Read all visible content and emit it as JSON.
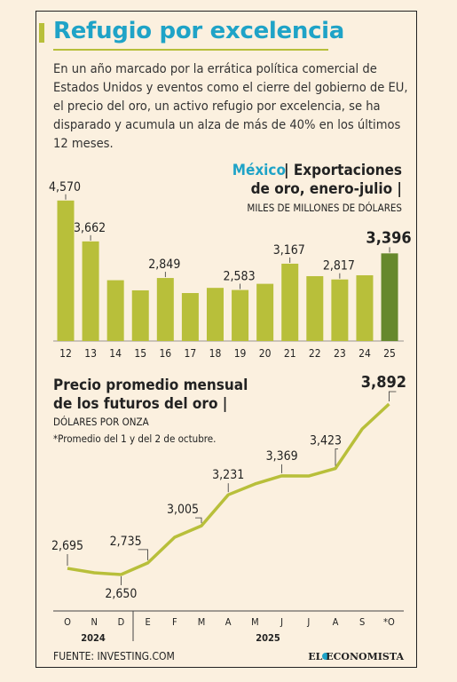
{
  "header": {
    "title": "Refugio por excelencia",
    "intro": "En un año marcado por la errática política comercial de Estados Unidos y eventos como el cierre del gobierno de EU, el precio del oro, un activo refugio por excelencia, se ha disparado y acumula un alza de más de 40% en los últimos 12 meses."
  },
  "chart_data": [
    {
      "type": "bar",
      "title_prefix": "México",
      "title": [
        "| Exportaciones",
        "de oro, enero-julio |"
      ],
      "subtitle": "MILES DE MILLONES DE DÓLARES",
      "categories": [
        "12",
        "13",
        "14",
        "15",
        "16",
        "17",
        "18",
        "19",
        "20",
        "21",
        "22",
        "23",
        "24",
        "25"
      ],
      "values": [
        4570,
        3662,
        2800,
        2575,
        2849,
        2515,
        2630,
        2583,
        2720,
        3167,
        2890,
        2817,
        2910,
        3396
      ],
      "value_labels": [
        "4,570",
        "3,662",
        null,
        null,
        "2,849",
        null,
        null,
        "2,583",
        null,
        "3,167",
        null,
        "2,817",
        null,
        "3,396"
      ],
      "color": "#b8bf3a",
      "highlight_color": "#66882c",
      "ylim": [
        1450,
        5000
      ]
    },
    {
      "type": "line",
      "title": [
        "Precio promedio mensual",
        "de los futuros del oro |"
      ],
      "subtitle": "DÓLARES POR ONZA",
      "note": "*Promedio del 1 y del 2 de octubre.",
      "categories": [
        "O",
        "N",
        "D",
        "E",
        "F",
        "M",
        "A",
        "M",
        "J",
        "J",
        "A",
        "S",
        "*O"
      ],
      "years": [
        "2024",
        "2025"
      ],
      "values": [
        2695,
        2663,
        2650,
        2735,
        2922,
        3005,
        3231,
        3310,
        3369,
        3368,
        3423,
        3711,
        3892
      ],
      "value_labels": [
        "2,695",
        null,
        "2,650",
        "2,735",
        null,
        "3,005",
        "3,231",
        null,
        "3,369",
        null,
        "3,423",
        null,
        "3,892"
      ],
      "color": "#b8bf3a",
      "ylim": [
        2500,
        4000
      ]
    }
  ],
  "footer": {
    "source": "FUENTE: INVESTING.COM",
    "logo": "EL ECONOMISTA"
  }
}
